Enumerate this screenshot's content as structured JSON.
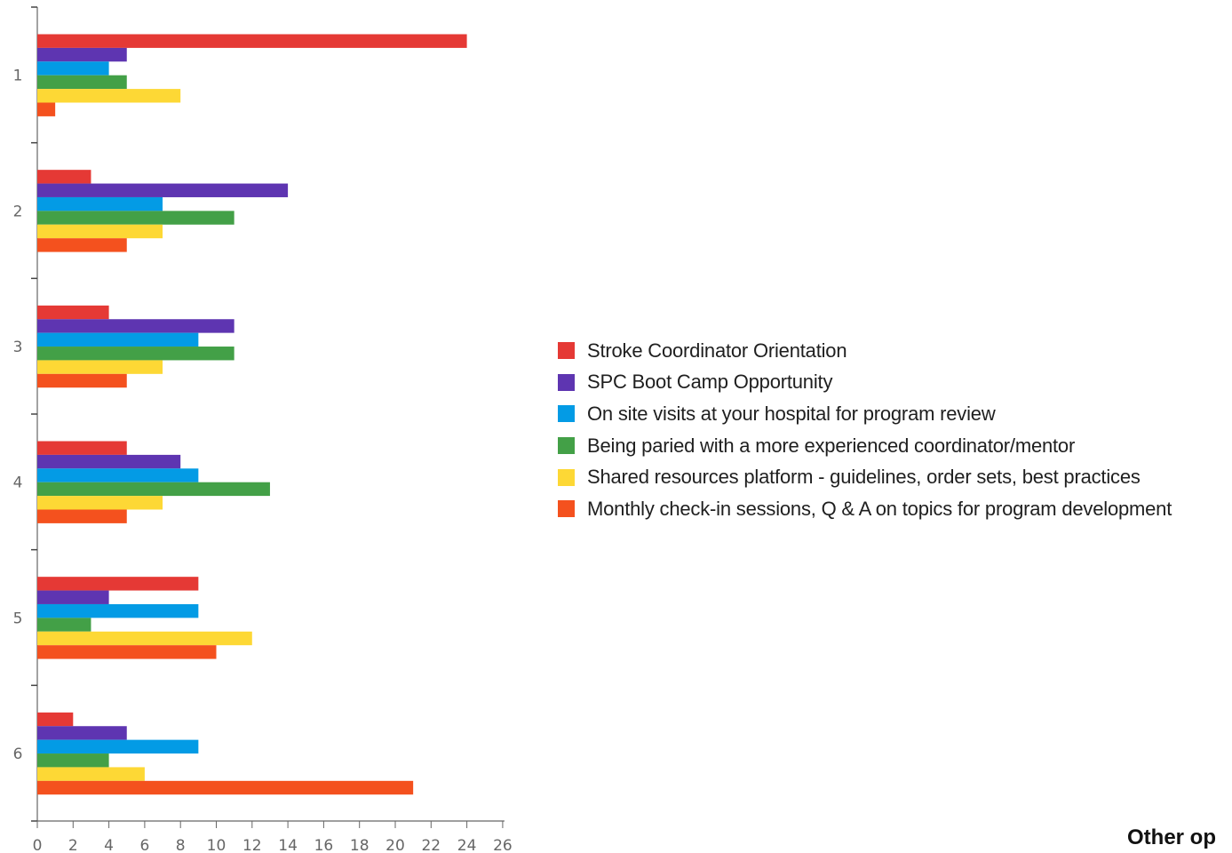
{
  "chart_data": {
    "type": "bar",
    "orientation": "horizontal",
    "categories": [
      "1",
      "2",
      "3",
      "4",
      "5",
      "6"
    ],
    "series": [
      {
        "name": "Stroke Coordinator Orientation",
        "color": "#e53935",
        "values": [
          24,
          3,
          4,
          5,
          9,
          2
        ]
      },
      {
        "name": "SPC Boot Camp Opportunity",
        "color": "#5e35b1",
        "values": [
          5,
          14,
          11,
          8,
          4,
          5
        ]
      },
      {
        "name": "On site visits at your hospital for program review",
        "color": "#039be5",
        "values": [
          4,
          7,
          9,
          9,
          9,
          9
        ]
      },
      {
        "name": "Being paried with a more experienced coordinator/mentor",
        "color": "#43a047",
        "values": [
          5,
          11,
          11,
          13,
          3,
          4
        ]
      },
      {
        "name": "Shared resources platform - guidelines, order sets, best practices",
        "color": "#fdd835",
        "values": [
          8,
          7,
          7,
          7,
          12,
          6
        ]
      },
      {
        "name": "Monthly check-in sessions, Q & A on topics for program development",
        "color": "#f4511e",
        "values": [
          1,
          5,
          5,
          5,
          10,
          21
        ]
      }
    ],
    "xlim": [
      0,
      26
    ],
    "xticks": [
      "0",
      "2",
      "4",
      "6",
      "8",
      "10",
      "12",
      "14",
      "16",
      "18",
      "20",
      "22",
      "24",
      "26"
    ],
    "title": "",
    "xlabel": "",
    "ylabel": "",
    "grid": false,
    "legend_position": "right"
  },
  "footer_text": "Other op"
}
